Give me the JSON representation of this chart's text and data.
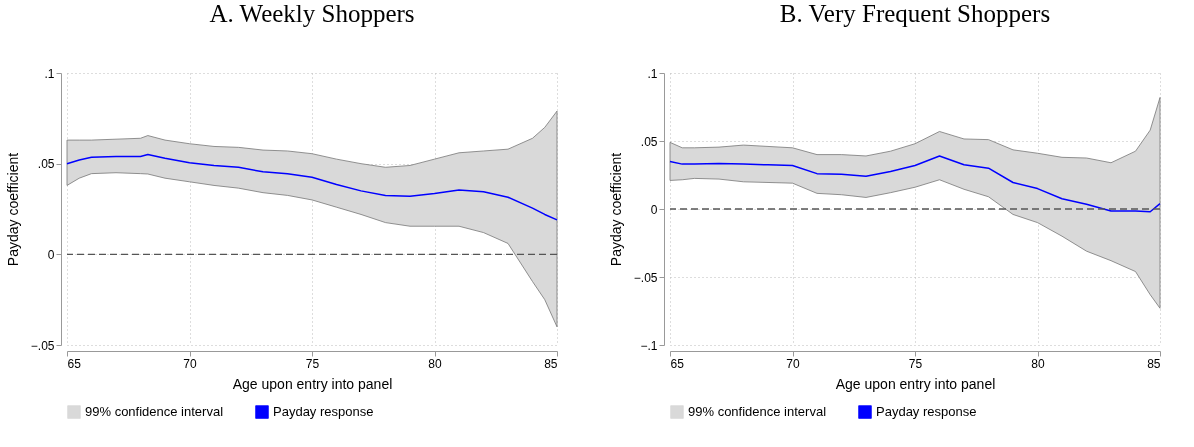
{
  "chart_data": [
    {
      "type": "line",
      "title": "A. Weekly Shoppers",
      "xlabel": "Age upon entry into panel",
      "ylabel": "Payday coefficient",
      "xlim": [
        65,
        85
      ],
      "xticks": [
        65,
        70,
        75,
        80,
        85
      ],
      "ylim": [
        -0.05,
        0.1
      ],
      "yticks": [
        {
          "value": 0.1,
          "label": ".1"
        },
        {
          "value": 0.05,
          "label": ".05"
        },
        0,
        {
          "value": -0.05,
          "label": "−.05"
        }
      ],
      "grid": true,
      "legend": "bottom",
      "line_style": "solid",
      "marker": "none",
      "annotations": [
        "99% confidence interval"
      ],
      "ref_lines": [
        {
          "axis": "y",
          "value": 0,
          "line_style": "dashed",
          "color": "#555555"
        }
      ],
      "series": [
        {
          "name": "Payday response",
          "color": "#0000ff",
          "x": [
            65,
            65.5,
            66,
            67,
            68,
            68.3,
            69,
            70,
            71,
            72,
            73,
            74,
            75,
            76,
            77,
            78,
            79,
            80,
            81,
            82,
            83,
            84,
            84.5,
            85
          ],
          "values": [
            0.05,
            0.052,
            0.0535,
            0.054,
            0.054,
            0.055,
            0.053,
            0.0505,
            0.049,
            0.048,
            0.0455,
            0.0445,
            0.0425,
            0.0385,
            0.035,
            0.0325,
            0.032,
            0.0335,
            0.0355,
            0.0345,
            0.0315,
            0.0255,
            0.022,
            0.019
          ],
          "lower": [
            0.038,
            0.042,
            0.0445,
            0.045,
            0.0445,
            0.0443,
            0.042,
            0.04,
            0.038,
            0.0365,
            0.034,
            0.0325,
            0.03,
            0.026,
            0.022,
            0.0175,
            0.0155,
            0.0155,
            0.0155,
            0.012,
            0.006,
            -0.015,
            -0.025,
            -0.04
          ],
          "upper": [
            0.063,
            0.063,
            0.063,
            0.0635,
            0.064,
            0.0655,
            0.063,
            0.061,
            0.0595,
            0.059,
            0.0575,
            0.057,
            0.0555,
            0.0525,
            0.05,
            0.048,
            0.049,
            0.0525,
            0.056,
            0.057,
            0.058,
            0.064,
            0.07,
            0.079
          ]
        }
      ]
    },
    {
      "type": "line",
      "title": "B. Very Frequent Shoppers",
      "xlabel": "Age upon entry into panel",
      "ylabel": "Payday coefficient",
      "xlim": [
        65,
        85
      ],
      "xticks": [
        65,
        70,
        75,
        80,
        85
      ],
      "ylim": [
        -0.1,
        0.1
      ],
      "yticks": [
        {
          "value": 0.1,
          "label": ".1"
        },
        {
          "value": 0.05,
          "label": ".05"
        },
        0,
        {
          "value": -0.05,
          "label": "−.05"
        },
        {
          "value": -0.1,
          "label": "−.1"
        }
      ],
      "grid": true,
      "legend": "bottom",
      "line_style": "solid",
      "marker": "none",
      "annotations": [
        "99% confidence interval"
      ],
      "ref_lines": [
        {
          "axis": "y",
          "value": 0,
          "line_style": "dashed",
          "color": "#555555"
        }
      ],
      "series": [
        {
          "name": "Payday response",
          "color": "#0000ff",
          "x": [
            65,
            65.5,
            66,
            67,
            68,
            69,
            70,
            71,
            72,
            73,
            74,
            75,
            76,
            77,
            78,
            79,
            80,
            81,
            82,
            83,
            84,
            84.6,
            85
          ],
          "values": [
            0.035,
            0.033,
            0.033,
            0.0335,
            0.033,
            0.0325,
            0.032,
            0.026,
            0.0255,
            0.024,
            0.0275,
            0.032,
            0.039,
            0.0325,
            0.03,
            0.0195,
            0.015,
            0.0075,
            0.0035,
            -0.0015,
            -0.0015,
            -0.002,
            0.004
          ],
          "lower": [
            0.021,
            0.0215,
            0.0225,
            0.022,
            0.02,
            0.0195,
            0.019,
            0.0115,
            0.0105,
            0.0085,
            0.012,
            0.016,
            0.0215,
            0.0145,
            0.009,
            -0.004,
            -0.01,
            -0.02,
            -0.031,
            -0.038,
            -0.046,
            -0.063,
            -0.073
          ],
          "upper": [
            0.049,
            0.045,
            0.045,
            0.0455,
            0.047,
            0.046,
            0.045,
            0.04,
            0.04,
            0.039,
            0.0425,
            0.048,
            0.057,
            0.0515,
            0.051,
            0.0435,
            0.041,
            0.038,
            0.0375,
            0.034,
            0.0425,
            0.058,
            0.082
          ]
        }
      ]
    }
  ]
}
